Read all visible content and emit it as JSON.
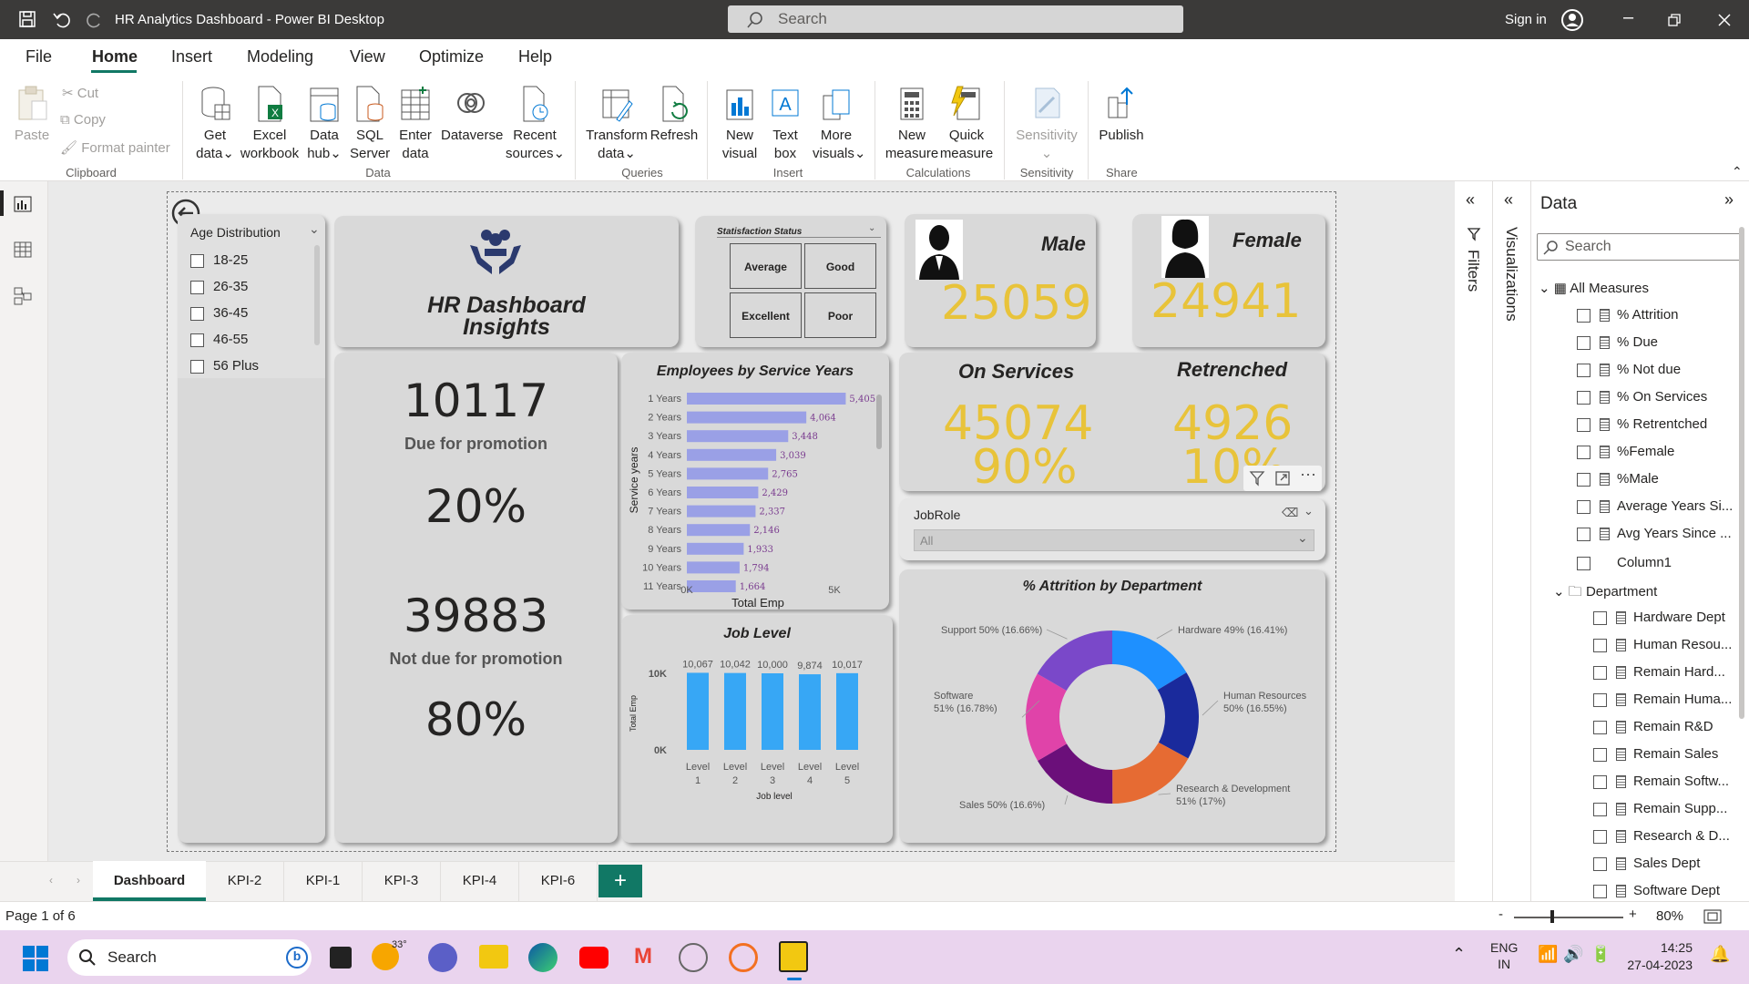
{
  "app": {
    "title": "HR Analytics Dashboard - Power BI Desktop",
    "search_placeholder": "Search",
    "sign_in": "Sign in"
  },
  "menu": [
    "File",
    "Home",
    "Insert",
    "Modeling",
    "View",
    "Optimize",
    "Help"
  ],
  "ribbon": {
    "clipboard": {
      "paste": "Paste",
      "cut": "Cut",
      "copy": "Copy",
      "format_painter": "Format painter",
      "group": "Clipboard"
    },
    "data": {
      "get_data_1": "Get",
      "get_data_2": "data",
      "excel_1": "Excel",
      "excel_2": "workbook",
      "hub_1": "Data",
      "hub_2": "hub",
      "sql_1": "SQL",
      "sql_2": "Server",
      "enter_1": "Enter",
      "enter_2": "data",
      "dataverse": "Dataverse",
      "recent_1": "Recent",
      "recent_2": "sources",
      "group": "Data"
    },
    "queries": {
      "transform_1": "Transform",
      "transform_2": "data",
      "refresh": "Refresh",
      "group": "Queries"
    },
    "insert": {
      "new_visual_1": "New",
      "new_visual_2": "visual",
      "text_box_1": "Text",
      "text_box_2": "box",
      "more_1": "More",
      "more_2": "visuals",
      "group": "Insert"
    },
    "calculations": {
      "new_measure_1": "New",
      "new_measure_2": "measure",
      "quick_measure_1": "Quick",
      "quick_measure_2": "measure",
      "group": "Calculations"
    },
    "sensitivity": {
      "label": "Sensitivity",
      "group": "Sensitivity"
    },
    "share": {
      "publish": "Publish",
      "group": "Share"
    }
  },
  "report": {
    "age_slicer": {
      "title": "Age Distribution",
      "options": [
        "18-25",
        "26-35",
        "36-45",
        "46-55",
        "56 Plus"
      ]
    },
    "logo": {
      "line1": "HR Dashboard",
      "line2": "Insights"
    },
    "satisfaction": {
      "title": "Statisfaction Status",
      "buttons": [
        "Average",
        "Good",
        "Excellent",
        "Poor"
      ]
    },
    "male": {
      "label": "Male",
      "value": "25059"
    },
    "female": {
      "label": "Female",
      "value": "24941"
    },
    "promotion": {
      "due_value": "10117",
      "due_label": "Due for promotion",
      "due_pct": "20%",
      "not_due_value": "39883",
      "not_due_label": "Not due for promotion",
      "not_due_pct": "80%"
    },
    "services": {
      "on_label": "On Services",
      "on_value": "45074",
      "on_pct": "90%",
      "ret_label": "Retrenched",
      "ret_value": "4926",
      "ret_pct": "10%"
    },
    "jobrole": {
      "title": "JobRole",
      "value": "All"
    }
  },
  "chart_data": [
    {
      "type": "bar",
      "title": "Employees by Service Years",
      "xlabel": "Total Emp",
      "ylabel": "Service years",
      "categories": [
        "1 Years",
        "2 Years",
        "3 Years",
        "4 Years",
        "5 Years",
        "6 Years",
        "7 Years",
        "8 Years",
        "9 Years",
        "10 Years",
        "11 Years"
      ],
      "values": [
        5405,
        4064,
        3448,
        3039,
        2765,
        2429,
        2337,
        2146,
        1933,
        1794,
        1664
      ],
      "value_labels": [
        "5,405",
        "4,064",
        "3,448",
        "3,039",
        "2,765",
        "2,429",
        "2,337",
        "2,146",
        "1,933",
        "1,794",
        "1,664"
      ],
      "xticks": [
        "0K",
        "5K"
      ],
      "xlim": [
        0,
        5500
      ],
      "color": "#9aa0e6"
    },
    {
      "type": "bar",
      "title": "Job Level",
      "xlabel": "Job level",
      "ylabel": "Total Emp",
      "categories": [
        [
          "Level",
          "1"
        ],
        [
          "Level",
          "2"
        ],
        [
          "Level",
          "3"
        ],
        [
          "Level",
          "4"
        ],
        [
          "Level",
          "5"
        ]
      ],
      "values": [
        10067,
        10042,
        10000,
        9874,
        10017
      ],
      "value_labels": [
        "10,067",
        "10,042",
        "10,000",
        "9,874",
        "10,017"
      ],
      "yticks": [
        "10K",
        "0K"
      ],
      "ylim": [
        0,
        11000
      ],
      "color": "#37a7f5"
    },
    {
      "type": "pie",
      "title": "% Attrition by Department",
      "slices": [
        {
          "label": "Hardware 49% (16.41%)",
          "value": 16.41,
          "color": "#1e90ff"
        },
        {
          "label": "Human Resources 50% (16.55%)",
          "value": 16.55,
          "color": "#1a2a9c"
        },
        {
          "label": "Research & Development 51% (17%)",
          "value": 17,
          "color": "#e66b33"
        },
        {
          "label": "Sales 50% (16.6%)",
          "value": 16.6,
          "color": "#6b0f7a"
        },
        {
          "label": "Software 51% (16.78%)",
          "value": 16.78,
          "color": "#e043a9"
        },
        {
          "label": "Support 50% (16.66%)",
          "value": 16.66,
          "color": "#7a48c9"
        }
      ]
    }
  ],
  "panes": {
    "filters": "Filters",
    "visualizations": "Visualizations",
    "data_title": "Data",
    "search_placeholder": "Search",
    "all_measures": "All Measures",
    "measures": [
      "% Attrition",
      "% Due",
      "% Not due",
      "% On Services",
      "% Retrentched",
      "%Female",
      "%Male",
      "Average Years Si...",
      "Avg Years Since ..."
    ],
    "column1": "Column1",
    "department": "Department",
    "dept_fields": [
      "Hardware Dept",
      "Human Resou...",
      "Remain Hard...",
      "Remain Huma...",
      "Remain R&D",
      "Remain Sales",
      "Remain Softw...",
      "Remain Supp...",
      "Research & D...",
      "Sales Dept",
      "Software Dept"
    ]
  },
  "tabs": [
    "Dashboard",
    "KPI-2",
    "KPI-1",
    "KPI-3",
    "KPI-4",
    "KPI-6"
  ],
  "status": {
    "page": "Page 1 of 6",
    "zoom": "80%"
  },
  "taskbar": {
    "search": "Search",
    "weather": "33°",
    "lang1": "ENG",
    "lang2": "IN",
    "time": "14:25",
    "date": "27-04-2023"
  }
}
